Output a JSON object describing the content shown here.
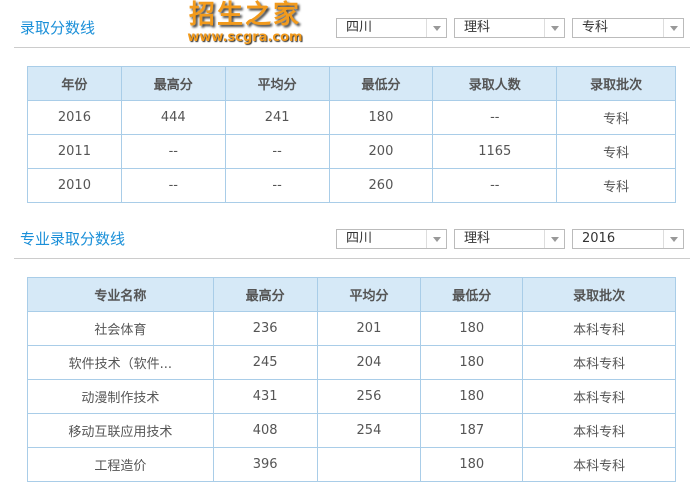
{
  "section1": {
    "title": "录取分数线",
    "filters": [
      "四川",
      "理科",
      "专科"
    ],
    "headers": [
      "年份",
      "最高分",
      "平均分",
      "最低分",
      "录取人数",
      "录取批次"
    ],
    "rows": [
      [
        "2016",
        "444",
        "241",
        "180",
        "--",
        "专科"
      ],
      [
        "2011",
        "--",
        "--",
        "200",
        "1165",
        "专科"
      ],
      [
        "2010",
        "--",
        "--",
        "260",
        "--",
        "专科"
      ]
    ]
  },
  "section2": {
    "title": "专业录取分数线",
    "filters": [
      "四川",
      "理科",
      "2016"
    ],
    "headers": [
      "专业名称",
      "最高分",
      "平均分",
      "最低分",
      "录取批次"
    ],
    "rows": [
      [
        "社会体育",
        "236",
        "201",
        "180",
        "本科专科"
      ],
      [
        "软件技术（软件...",
        "245",
        "204",
        "180",
        "本科专科"
      ],
      [
        "动漫制作技术",
        "431",
        "256",
        "180",
        "本科专科"
      ],
      [
        "移动互联应用技术",
        "408",
        "254",
        "187",
        "本科专科"
      ],
      [
        "工程造价",
        "396",
        "",
        "180",
        "本科专科"
      ]
    ]
  },
  "watermark": {
    "text": "招生之家",
    "url": "www.scgra.com"
  },
  "colors": {
    "accent": "#1a8fd8",
    "header_bg": "#d6e9f7",
    "border": "#a9cde8",
    "watermark": "#f29a1c"
  }
}
